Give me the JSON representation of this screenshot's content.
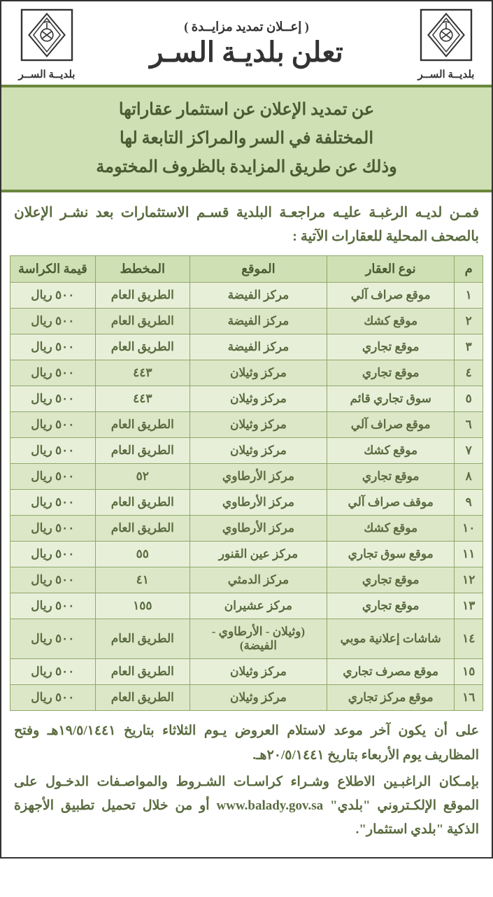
{
  "header": {
    "pre_title": "( إعــلان تمديد مزايــدة )",
    "main_title": "تعلن بلديـة السـر",
    "logo_label": "بلديــة الســر"
  },
  "banner": {
    "line1": "عن تمديد الإعلان عن استثمار عقاراتها",
    "line2": "المختلفة في السر والمراكز التابعة لها",
    "line3": "وذلك عن طريق المزايدة بالظروف المختومة"
  },
  "intro": "فمـن لديـه الرغبـة عليـه مراجعـة البلدية قسـم الاستثمارات بعد نشـر الإعلان بالصحف المحلية للعقارات الآتية :",
  "table": {
    "headers": {
      "idx": "م",
      "type": "نوع العقار",
      "location": "الموقع",
      "plan": "المخطط",
      "price": "قيمة الكراسة"
    },
    "rows": [
      {
        "idx": "١",
        "type": "موقع صراف آلي",
        "location": "مركز الفيضة",
        "plan": "الطريق العام",
        "price": "٥٠٠ ريال"
      },
      {
        "idx": "٢",
        "type": "موقع كشك",
        "location": "مركز الفيضة",
        "plan": "الطريق العام",
        "price": "٥٠٠ ريال"
      },
      {
        "idx": "٣",
        "type": "موقع تجاري",
        "location": "مركز الفيضة",
        "plan": "الطريق العام",
        "price": "٥٠٠ ريال"
      },
      {
        "idx": "٤",
        "type": "موقع تجاري",
        "location": "مركز وثيلان",
        "plan": "٤٤٣",
        "price": "٥٠٠ ريال"
      },
      {
        "idx": "٥",
        "type": "سوق تجاري قائم",
        "location": "مركز وثيلان",
        "plan": "٤٤٣",
        "price": "٥٠٠ ريال"
      },
      {
        "idx": "٦",
        "type": "موقع صراف آلي",
        "location": "مركز وثيلان",
        "plan": "الطريق العام",
        "price": "٥٠٠ ريال"
      },
      {
        "idx": "٧",
        "type": "موقع كشك",
        "location": "مركز وثيلان",
        "plan": "الطريق العام",
        "price": "٥٠٠ ريال"
      },
      {
        "idx": "٨",
        "type": "موقع تجاري",
        "location": "مركز الأرطاوي",
        "plan": "٥٢",
        "price": "٥٠٠ ريال"
      },
      {
        "idx": "٩",
        "type": "موقف صراف آلي",
        "location": "مركز الأرطاوي",
        "plan": "الطريق العام",
        "price": "٥٠٠ ريال"
      },
      {
        "idx": "١٠",
        "type": "موقع كشك",
        "location": "مركز الأرطاوي",
        "plan": "الطريق العام",
        "price": "٥٠٠ ريال"
      },
      {
        "idx": "١١",
        "type": "موقع سوق تجاري",
        "location": "مركز عين القنور",
        "plan": "٥٥",
        "price": "٥٠٠ ريال"
      },
      {
        "idx": "١٢",
        "type": "موقع تجاري",
        "location": "مركز الدمثي",
        "plan": "٤١",
        "price": "٥٠٠ ريال"
      },
      {
        "idx": "١٣",
        "type": "موقع تجاري",
        "location": "مركز عشيران",
        "plan": "١٥٥",
        "price": "٥٠٠ ريال"
      },
      {
        "idx": "١٤",
        "type": "شاشات إعلانية موبي",
        "location": "(وثيلان - الأرطاوي - الفيضة)",
        "plan": "الطريق العام",
        "price": "٥٠٠ ريال"
      },
      {
        "idx": "١٥",
        "type": "موقع مصرف تجاري",
        "location": "مركز وثيلان",
        "plan": "الطريق العام",
        "price": "٥٠٠ ريال"
      },
      {
        "idx": "١٦",
        "type": "موقع مركز تجاري",
        "location": "مركز وثيلان",
        "plan": "الطريق العام",
        "price": "٥٠٠ ريال"
      }
    ]
  },
  "footer": {
    "p1": "على أن يكون آخر موعد لاستلام العروض يـوم الثلاثاء بتاريخ ١٩/٥/١٤٤١هـ وفتح المظاريف يوم الأربعاء بتاريخ ٢٠/٥/١٤٤١هـ.",
    "p2_a": "بإمـكان الراغبـين الاطلاع وشـراء كراسـات الشـروط والمواصـفات الدخـول على الموقع الإلكـتروني \"بلدي\" ",
    "p2_url": "www.balady.gov.sa",
    "p2_b": " أو من خلال تحميل تطبيق الأجهزة الذكية \"بلدي استثمار\"."
  },
  "style": {
    "banner_bg": "#cfe0b4",
    "banner_border": "#6a873d",
    "table_header_bg": "#cfe0b4",
    "row_odd_bg": "#e8efd9",
    "row_even_bg": "#dce7c8",
    "border_color": "#8fa768",
    "text_accent": "#5a6b3f"
  }
}
